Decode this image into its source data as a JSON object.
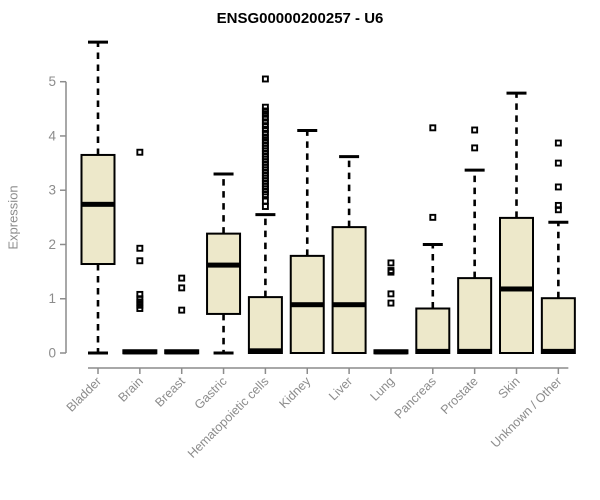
{
  "title": "ENSG00000200257 - U6",
  "colors": {
    "box_fill": "#ede8ca",
    "box_stroke": "#000000",
    "median": "#000000",
    "whisker": "#000000",
    "outlier": "#000000",
    "axis": "#8c8c8c",
    "tick_label": "#8c8c8c",
    "title": "#000000",
    "background": "#ffffff"
  },
  "chart_data": {
    "type": "boxplot",
    "title": "ENSG00000200257 - U6",
    "xlabel": "",
    "ylabel": "Expression",
    "ylim": [
      0,
      5.8
    ],
    "yticks": [
      0,
      1,
      2,
      3,
      4,
      5
    ],
    "grid": false,
    "legend": false,
    "categories": [
      "Bladder",
      "Brain",
      "Breast",
      "Gastric",
      "Hematopoietic cells",
      "Kidney",
      "Liver",
      "Lung",
      "Pancreas",
      "Prostate",
      "Skin",
      "Unknown / Other"
    ],
    "series": [
      {
        "name": "Bladder",
        "min": 0,
        "q1": 1.64,
        "median": 2.74,
        "q3": 3.65,
        "max": 5.73,
        "outliers": []
      },
      {
        "name": "Brain",
        "min": 0,
        "q1": 0,
        "median": 0.02,
        "q3": 0.05,
        "max": 0.05,
        "outliers": [
          3.7,
          1.93,
          1.7,
          1.08,
          1.0,
          0.94,
          0.88,
          0.82
        ]
      },
      {
        "name": "Breast",
        "min": 0,
        "q1": 0,
        "median": 0.02,
        "q3": 0.05,
        "max": 0.05,
        "outliers": [
          1.38,
          1.2,
          0.79
        ]
      },
      {
        "name": "Gastric",
        "min": 0,
        "q1": 0.72,
        "median": 1.62,
        "q3": 2.2,
        "max": 3.3,
        "outliers": []
      },
      {
        "name": "Hematopoietic cells",
        "min": 0,
        "q1": 0,
        "median": 0.04,
        "q3": 1.03,
        "max": 2.55,
        "outliers": [
          5.05,
          4.53,
          4.46,
          4.4,
          4.33,
          4.26,
          4.19,
          4.12,
          4.05,
          3.98,
          3.92,
          3.87,
          3.82,
          3.77,
          3.72,
          3.67,
          3.62,
          3.57,
          3.52,
          3.47,
          3.42,
          3.37,
          3.32,
          3.27,
          3.22,
          3.17,
          3.12,
          3.07,
          3.02,
          2.97,
          2.92,
          2.8,
          2.7
        ]
      },
      {
        "name": "Kidney",
        "min": 0,
        "q1": 0,
        "median": 0.89,
        "q3": 1.79,
        "max": 4.1,
        "outliers": []
      },
      {
        "name": "Liver",
        "min": 0,
        "q1": 0,
        "median": 0.89,
        "q3": 2.32,
        "max": 3.62,
        "outliers": []
      },
      {
        "name": "Lung",
        "min": 0,
        "q1": 0,
        "median": 0.02,
        "q3": 0.05,
        "max": 0.05,
        "outliers": [
          1.66,
          1.52,
          1.49,
          1.09,
          0.92
        ]
      },
      {
        "name": "Pancreas",
        "min": 0,
        "q1": 0,
        "median": 0.03,
        "q3": 0.82,
        "max": 2.0,
        "outliers": [
          4.15,
          2.5
        ]
      },
      {
        "name": "Prostate",
        "min": 0,
        "q1": 0,
        "median": 0.03,
        "q3": 1.38,
        "max": 3.37,
        "outliers": [
          4.11,
          3.78
        ]
      },
      {
        "name": "Skin",
        "min": 0,
        "q1": 0,
        "median": 1.18,
        "q3": 2.49,
        "max": 4.79,
        "outliers": []
      },
      {
        "name": "Unknown / Other",
        "min": 0,
        "q1": 0,
        "median": 0.03,
        "q3": 1.01,
        "max": 2.41,
        "outliers": [
          3.87,
          3.5,
          3.06,
          2.72,
          2.64
        ]
      }
    ]
  }
}
